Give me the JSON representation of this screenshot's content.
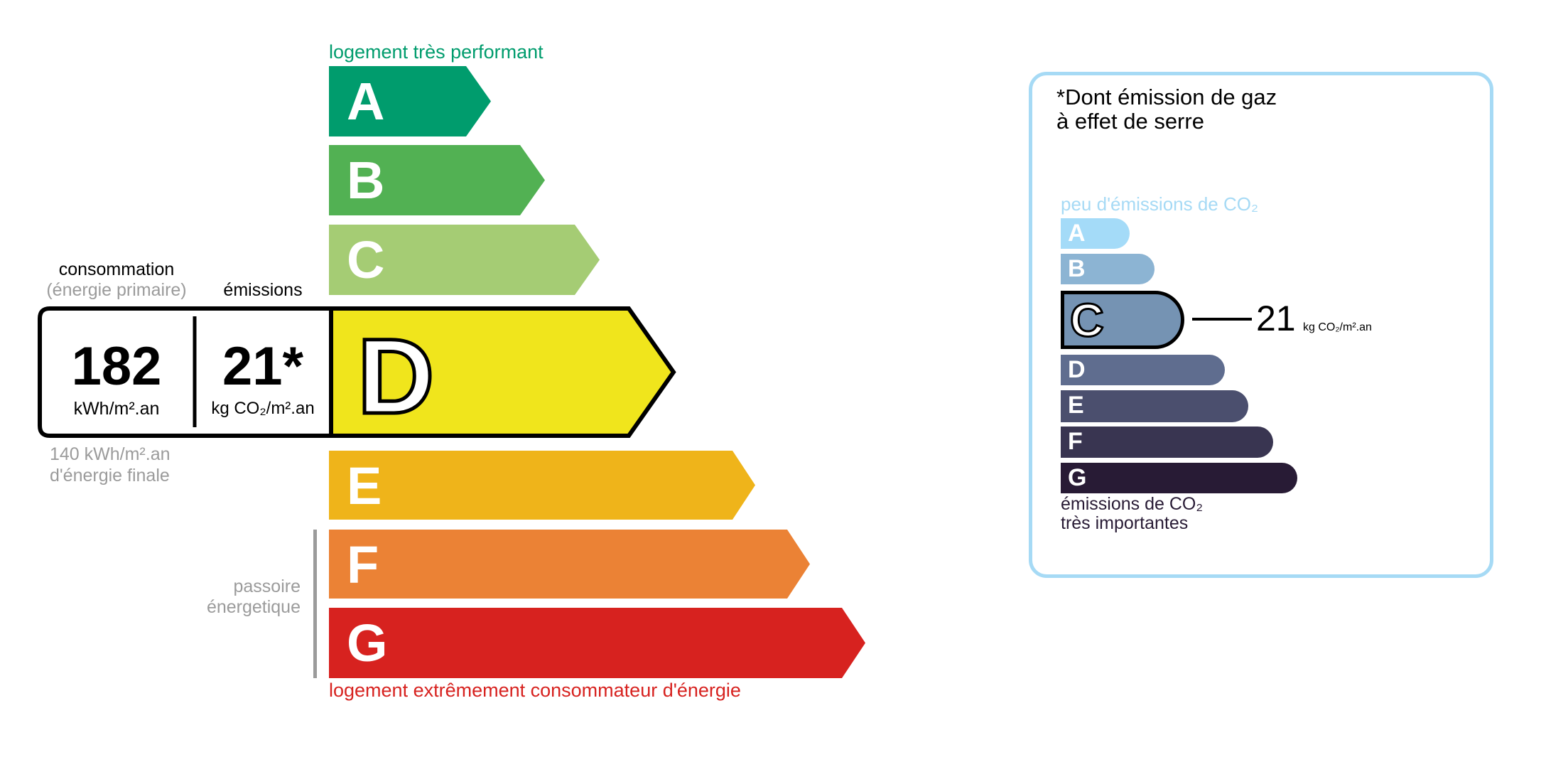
{
  "energy": {
    "top_label": "logement très performant",
    "bottom_label": "logement extrêmement consommateur d'énergie",
    "passoire_label_1": "passoire",
    "passoire_label_2": "énergetique",
    "classes": [
      {
        "letter": "A",
        "color": "#009c6d"
      },
      {
        "letter": "B",
        "color": "#52b153"
      },
      {
        "letter": "C",
        "color": "#a5cc74"
      },
      {
        "letter": "D",
        "color": "#f0e51c"
      },
      {
        "letter": "E",
        "color": "#efb41a"
      },
      {
        "letter": "F",
        "color": "#eb8235"
      },
      {
        "letter": "G",
        "color": "#d7221f"
      }
    ],
    "current_class": "D",
    "consumption_label": "consommation",
    "consumption_sublabel": "(énergie primaire)",
    "emissions_label": "émissions",
    "consumption_value": "182",
    "consumption_unit": "kWh/m².an",
    "emissions_value": "21*",
    "emissions_unit": "kg CO₂/m².an",
    "final_energy_value": "140 kWh/m².an",
    "final_energy_label": "d'énergie finale"
  },
  "ges": {
    "title_1": "*Dont émission de gaz",
    "title_2": "à effet de serre",
    "top_label": "peu d'émissions de CO₂",
    "bottom_label_1": "émissions de CO₂",
    "bottom_label_2": "très importantes",
    "border_color": "#a6daf5",
    "classes": [
      {
        "letter": "A",
        "color": "#a4dbf8"
      },
      {
        "letter": "B",
        "color": "#8cb4d3"
      },
      {
        "letter": "C",
        "color": "#7593b3"
      },
      {
        "letter": "D",
        "color": "#5f6d8f"
      },
      {
        "letter": "E",
        "color": "#4b4f6e"
      },
      {
        "letter": "F",
        "color": "#393551"
      },
      {
        "letter": "G",
        "color": "#281b35"
      }
    ],
    "current_class": "C",
    "value": "21",
    "unit": "kg CO₂/m².an"
  }
}
